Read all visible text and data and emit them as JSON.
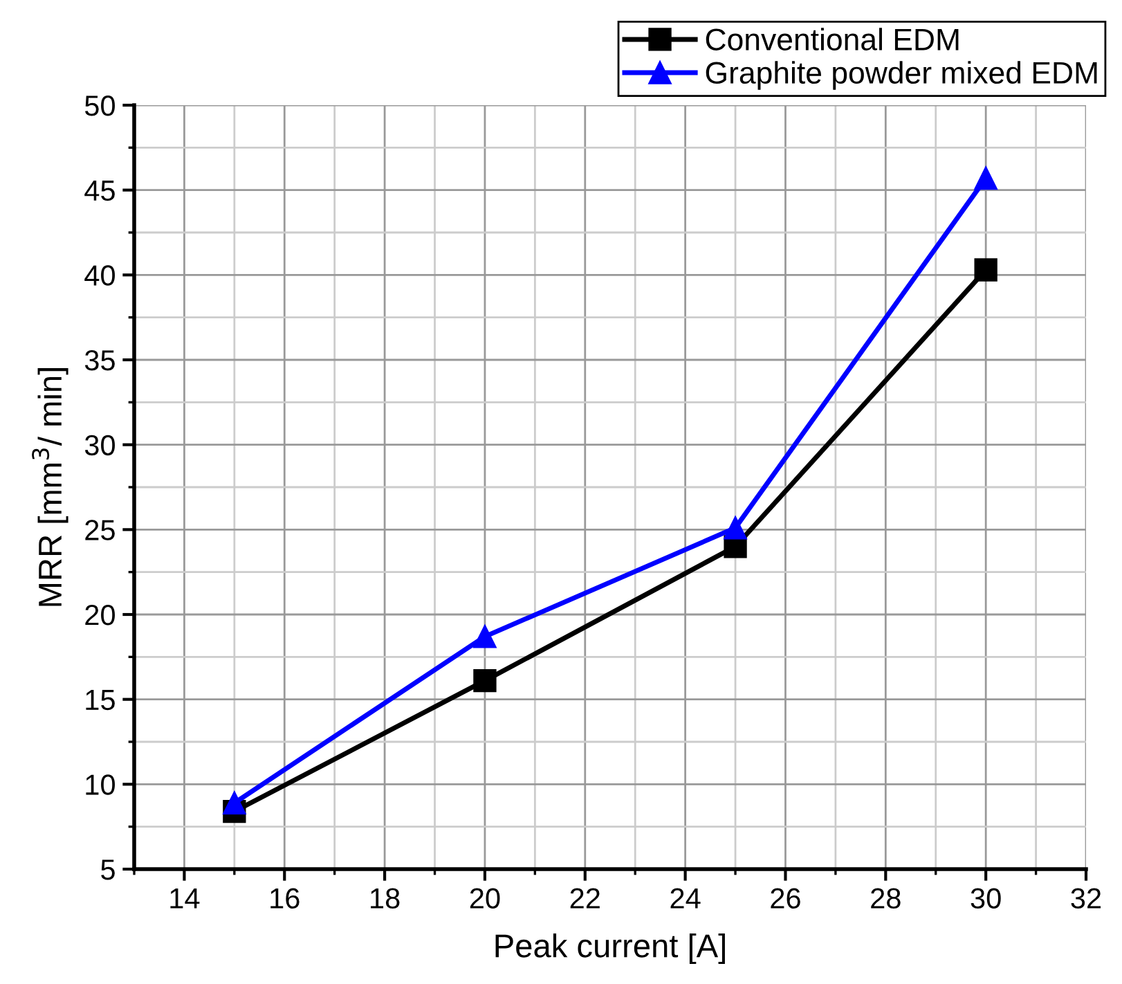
{
  "chart_data": {
    "type": "line",
    "xlabel": "Peak current [A]",
    "ylabel": "MRR [mm$^{3}$/ min]",
    "x": [
      15,
      20,
      25,
      30
    ],
    "series": [
      {
        "name": "Conventional EDM",
        "color": "#000000",
        "marker": "square",
        "values": [
          8.4,
          16.1,
          24.0,
          40.3
        ]
      },
      {
        "name": "Graphite powder mixed EDM",
        "color": "#0000ff",
        "marker": "triangle",
        "values": [
          8.9,
          18.7,
          25.1,
          45.7
        ]
      }
    ],
    "xlim": [
      13,
      32
    ],
    "xticks": [
      14,
      16,
      18,
      20,
      22,
      24,
      26,
      28,
      30,
      32
    ],
    "ylim": [
      5,
      50
    ],
    "yticks": [
      5,
      10,
      15,
      20,
      25,
      30,
      35,
      40,
      45,
      50
    ],
    "grid": true,
    "legend": "top right",
    "line_style": "solid"
  }
}
